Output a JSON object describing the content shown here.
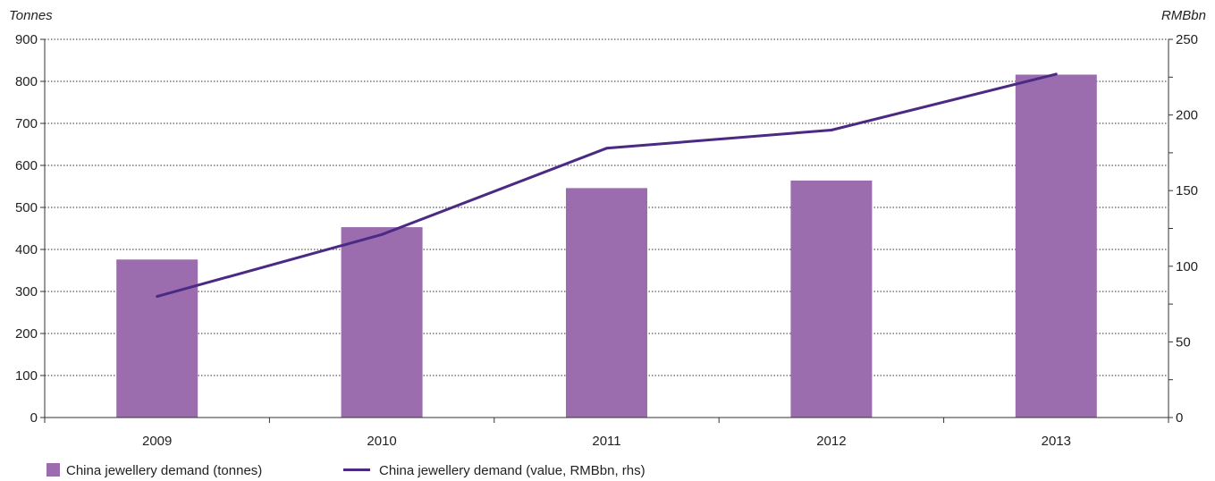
{
  "chart_data": {
    "type": "bar",
    "categories": [
      "2009",
      "2010",
      "2011",
      "2012",
      "2013"
    ],
    "y_left": {
      "label": "Tonnes",
      "lim": [
        0,
        900
      ],
      "ticks": [
        0,
        100,
        200,
        300,
        400,
        500,
        600,
        700,
        800,
        900
      ]
    },
    "y_right": {
      "label": "RMBbn",
      "lim": [
        0,
        250
      ],
      "ticks": [
        0,
        50,
        100,
        150,
        200,
        250
      ]
    },
    "grid": "horizontal dotted",
    "legend_position": "bottom-left",
    "series": [
      {
        "name": "China jewellery demand (tonnes)",
        "type": "bar",
        "axis": "left",
        "color": "#9c6dae",
        "values": [
          376,
          453,
          546,
          564,
          816
        ]
      },
      {
        "name": "China jewellery demand (value, RMBbn, rhs)",
        "type": "line",
        "axis": "right",
        "color": "#4b2a84",
        "values": [
          80,
          121,
          178,
          190,
          227
        ]
      }
    ]
  }
}
